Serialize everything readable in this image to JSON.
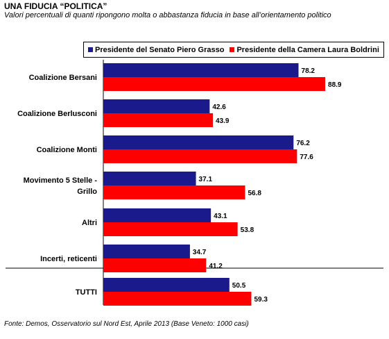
{
  "header": {
    "title": "UNA FIDUCIA “POLITICA”",
    "subtitle": "Valori percentuali di quanti ripongono molta o abbastanza fiducia in base all’orientamento politico"
  },
  "source": "Fonte: Demos, Osservatorio sul Nord Est, Aprile 2013 (Base Veneto: 1000 casi)",
  "colors": {
    "series1": "#1a1a8c",
    "series2": "#ff0000"
  },
  "chart_data": {
    "type": "bar",
    "orientation": "horizontal",
    "categories": [
      [
        "Coalizione Bersani"
      ],
      [
        "Coalizione Berlusconi"
      ],
      [
        "Coalizione Monti"
      ],
      [
        "Movimento 5 Stelle -",
        "Grillo"
      ],
      [
        "Altri"
      ],
      [
        "Incerti, reticenti"
      ],
      [
        "TUTTI"
      ]
    ],
    "series": [
      {
        "name": "Presidente del Senato Piero Grasso",
        "values": [
          78.2,
          42.6,
          76.2,
          37.1,
          43.1,
          34.7,
          50.5
        ]
      },
      {
        "name": "Presidente della Camera Laura Boldrini",
        "values": [
          88.9,
          43.9,
          77.6,
          56.8,
          53.8,
          41.2,
          59.3
        ]
      }
    ],
    "xlim": [
      0,
      100
    ],
    "legend": "top",
    "separator_before": "TUTTI",
    "grid": false
  }
}
